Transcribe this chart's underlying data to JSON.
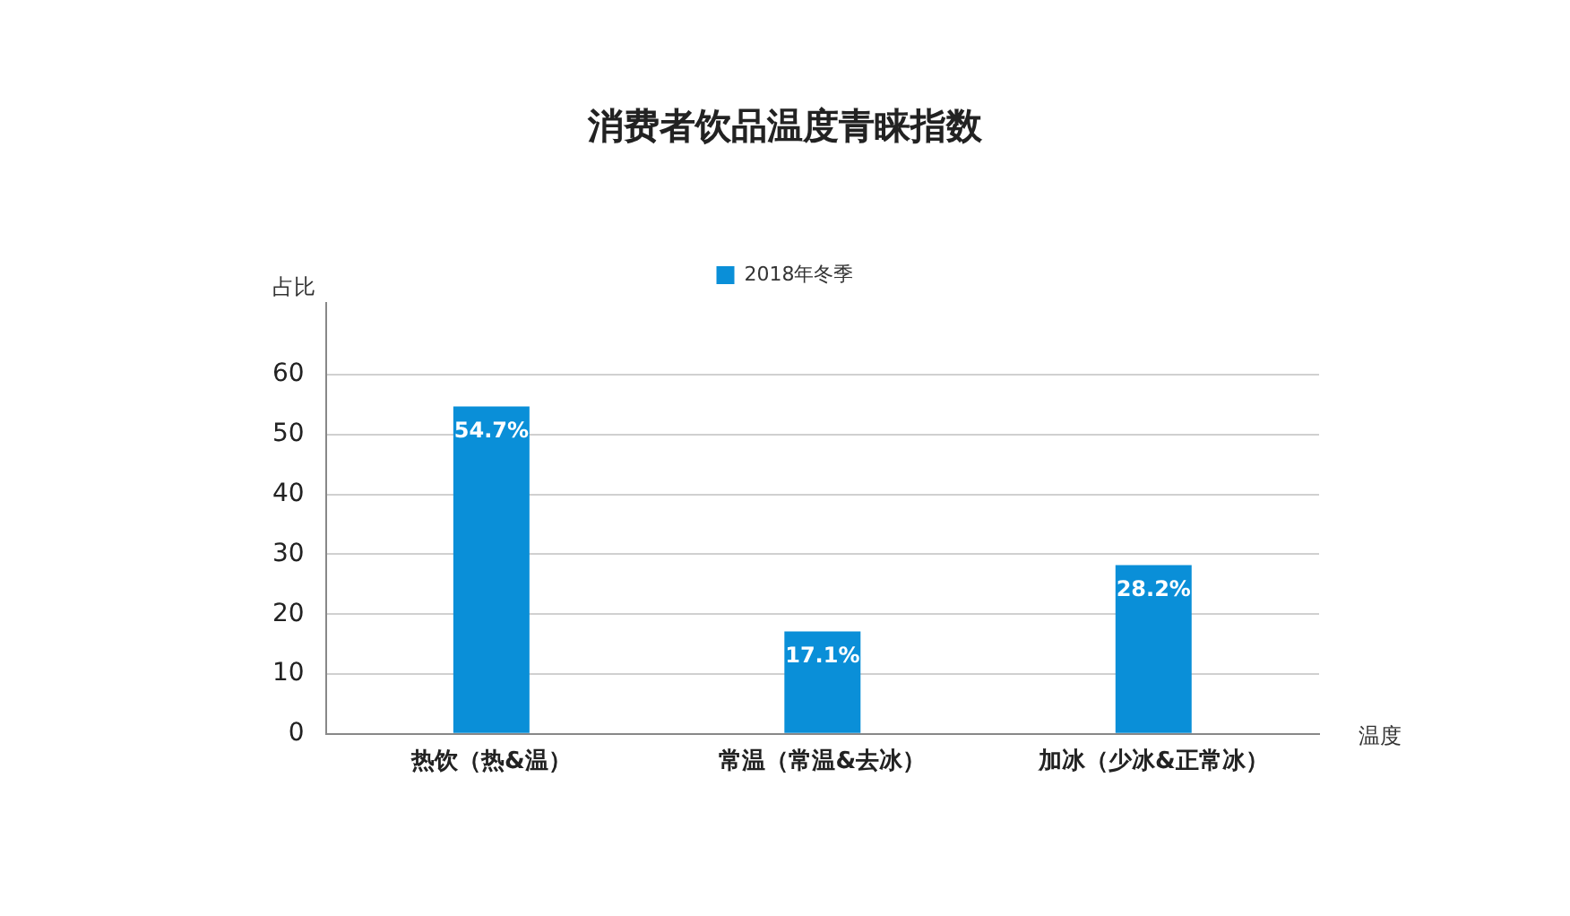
{
  "chart_data": {
    "type": "bar",
    "title": "消费者饮品温度青睐指数",
    "xlabel": "温度",
    "ylabel": "占比",
    "categories": [
      "热饮（热&温）",
      "常温（常温&去冰）",
      "加冰（少冰&正常冰）"
    ],
    "series": [
      {
        "name": "2018年冬季",
        "color": "#0a8fd8",
        "values": [
          54.7,
          17.1,
          28.2
        ],
        "value_labels": [
          "54.7%",
          "17.1%",
          "28.2%"
        ]
      }
    ],
    "ylim": [
      0,
      72
    ],
    "yticks": [
      0,
      10,
      20,
      30,
      40,
      50,
      60
    ],
    "grid": "y",
    "legend": "top"
  }
}
